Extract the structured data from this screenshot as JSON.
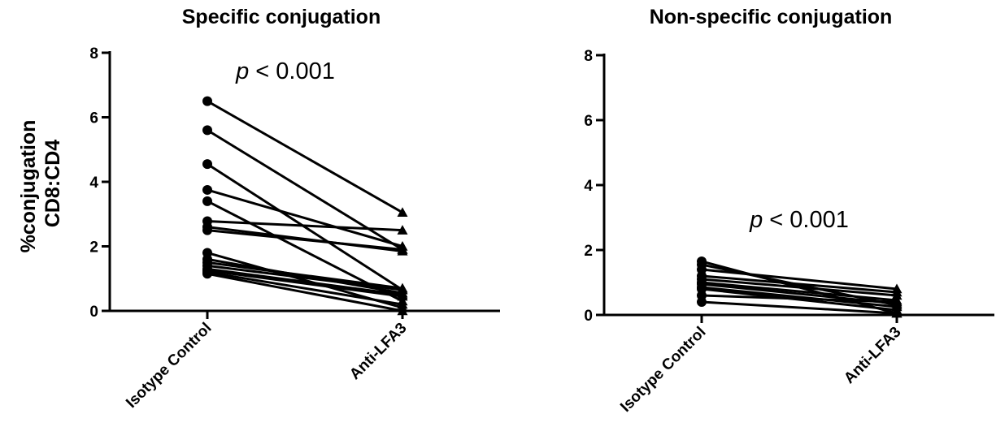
{
  "chart_data": [
    {
      "type": "line",
      "title": "Specific conjugation",
      "ylabel": "%conjugation CD8:CD4",
      "ylabel_lines": [
        "%conjugation",
        "CD8:CD4"
      ],
      "categories": [
        "Isotype Control",
        "Anti-LFA3"
      ],
      "ylim": [
        0,
        8
      ],
      "yticks": [
        0,
        2,
        4,
        6,
        8
      ],
      "annotation": {
        "p": "p",
        "rest": " < 0.001"
      },
      "markers": {
        "Isotype Control": "circle",
        "Anti-LFA3": "triangle"
      },
      "pairs": [
        [
          6.5,
          3.05
        ],
        [
          5.6,
          1.9
        ],
        [
          4.55,
          0.65
        ],
        [
          3.75,
          2.0
        ],
        [
          3.4,
          0.3
        ],
        [
          2.78,
          2.5
        ],
        [
          2.6,
          1.85
        ],
        [
          2.5,
          1.9
        ],
        [
          1.8,
          0.1
        ],
        [
          1.6,
          0.55
        ],
        [
          1.5,
          0.7
        ],
        [
          1.4,
          0.65
        ],
        [
          1.3,
          0.5
        ],
        [
          1.25,
          0.45
        ],
        [
          1.2,
          0.2
        ],
        [
          1.15,
          0.0
        ]
      ]
    },
    {
      "type": "line",
      "title": "Non-specific conjugation",
      "ylabel": "",
      "categories": [
        "Isotype Control",
        "Anti-LFA3"
      ],
      "ylim": [
        0,
        8
      ],
      "yticks": [
        0,
        2,
        4,
        6,
        8
      ],
      "annotation": {
        "p": "p",
        "rest": " < 0.001"
      },
      "markers": {
        "Isotype Control": "circle",
        "Anti-LFA3": "triangle"
      },
      "pairs": [
        [
          1.65,
          0.05
        ],
        [
          1.55,
          0.3
        ],
        [
          1.4,
          0.8
        ],
        [
          1.2,
          0.7
        ],
        [
          1.1,
          0.6
        ],
        [
          1.0,
          0.45
        ],
        [
          0.95,
          0.35
        ],
        [
          0.85,
          0.25
        ],
        [
          0.8,
          0.15
        ],
        [
          0.6,
          0.4
        ],
        [
          0.4,
          0.05
        ]
      ]
    }
  ]
}
